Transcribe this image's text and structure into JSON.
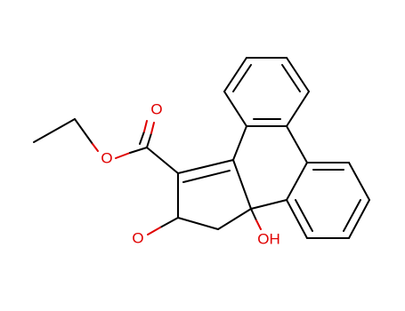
{
  "atoms": [
    {
      "label": "O"
    },
    {
      "label": "O"
    },
    {
      "label": "O"
    },
    {
      "label": "OH"
    }
  ]
}
